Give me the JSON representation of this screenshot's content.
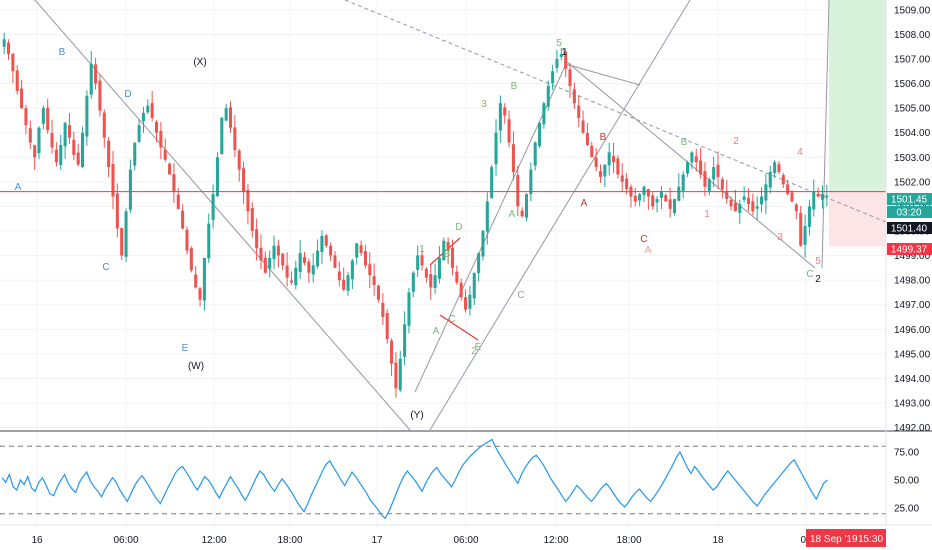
{
  "chart_data": {
    "type": "candlestick",
    "price_axis": {
      "ticks": [
        "1509.00",
        "1508.00",
        "1507.00",
        "1506.00",
        "1505.00",
        "1504.00",
        "1503.00",
        "1502.00",
        "1501.00",
        "1500.00",
        "1499.00",
        "1498.00",
        "1497.00",
        "1496.00",
        "1495.00",
        "1494.00",
        "1493.00",
        "1492.00"
      ],
      "ylim": [
        1491.9,
        1509.4
      ],
      "tags": {
        "last_price": "1501.45",
        "countdown": "03:20",
        "price_1": "1501.40",
        "price_2": "1499.37"
      }
    },
    "time_axis": {
      "labels": [
        "16",
        "06:00",
        "12:00",
        "18:00",
        "17",
        "06:00",
        "12:00",
        "18:00",
        "18",
        "06"
      ],
      "cursor_label": "18 Sep '19",
      "cursor_time": "15:30"
    },
    "rsi": {
      "ticks": [
        "75.00",
        "50.00",
        "25.00"
      ],
      "upper": 80,
      "lower": 20,
      "range": [
        10,
        90
      ],
      "values": [
        52,
        48,
        55,
        44,
        41,
        50,
        46,
        53,
        43,
        40,
        48,
        52,
        45,
        38,
        36,
        44,
        50,
        55,
        47,
        42,
        39,
        48,
        53,
        57,
        49,
        44,
        40,
        35,
        42,
        47,
        52,
        48,
        41,
        36,
        31,
        38,
        45,
        50,
        54,
        49,
        44,
        38,
        33,
        29,
        36,
        43,
        49,
        56,
        60,
        62,
        57,
        52,
        46,
        41,
        47,
        53,
        50,
        45,
        39,
        34,
        41,
        47,
        53,
        48,
        43,
        37,
        32,
        38,
        45,
        52,
        58,
        55,
        49,
        44,
        40,
        46,
        51,
        47,
        42,
        37,
        31,
        26,
        22,
        29,
        37,
        44,
        51,
        58,
        64,
        67,
        61,
        56,
        50,
        45,
        51,
        57,
        53,
        48,
        43,
        38,
        32,
        28,
        24,
        19,
        16,
        22,
        30,
        38,
        46,
        53,
        58,
        54,
        50,
        45,
        40,
        47,
        53,
        58,
        61,
        56,
        52,
        48,
        44,
        50,
        57,
        63,
        67,
        71,
        74,
        77,
        80,
        82,
        84,
        86,
        79,
        73,
        68,
        62,
        57,
        52,
        47,
        55,
        61,
        66,
        70,
        72,
        68,
        63,
        57,
        51,
        46,
        41,
        36,
        31,
        35,
        40,
        45,
        42,
        38,
        34,
        31,
        35,
        40,
        44,
        47,
        43,
        38,
        33,
        29,
        26,
        30,
        35,
        39,
        42,
        38,
        34,
        31,
        35,
        40,
        45,
        51,
        57,
        63,
        70,
        75,
        68,
        61,
        56,
        62,
        58,
        53,
        49,
        45,
        41,
        44,
        49,
        54,
        58,
        54,
        50,
        46,
        42,
        38,
        34,
        30,
        27,
        32,
        37,
        41,
        45,
        49,
        53,
        57,
        61,
        65,
        68,
        62,
        56,
        50,
        44,
        38,
        33,
        40,
        47,
        50
      ]
    },
    "price_levels": [
      {
        "value": 1501.6,
        "color": "#f23645"
      }
    ],
    "series": [
      {
        "name": "",
        "color_up": "#26a69a",
        "color_down": "#ef5350",
        "ohlc_path": [
          1507.8,
          1507.2,
          1506.5,
          1505.7,
          1505.0,
          1504.3,
          1503.6,
          1503.0,
          1504.2,
          1505.0,
          1504.1,
          1503.4,
          1502.8,
          1503.5,
          1504.4,
          1503.8,
          1503.1,
          1502.7,
          1504.0,
          1505.5,
          1506.8,
          1506.0,
          1504.9,
          1503.8,
          1502.6,
          1501.4,
          1500.1,
          1499.0,
          1500.8,
          1502.5,
          1503.6,
          1504.3,
          1504.8,
          1505.1,
          1504.6,
          1504.0,
          1503.4,
          1502.9,
          1502.3,
          1501.6,
          1500.9,
          1500.1,
          1499.2,
          1498.4,
          1497.7,
          1497.2,
          1498.9,
          1500.3,
          1501.5,
          1503.0,
          1504.6,
          1505.0,
          1504.2,
          1503.3,
          1502.5,
          1501.6,
          1500.8,
          1500.0,
          1499.3,
          1498.8,
          1498.3,
          1498.9,
          1499.4,
          1499.0,
          1498.6,
          1498.1,
          1497.9,
          1498.5,
          1499.1,
          1498.7,
          1498.3,
          1498.6,
          1499.2,
          1499.8,
          1499.4,
          1499.0,
          1498.5,
          1498.0,
          1497.6,
          1498.2,
          1498.8,
          1499.5,
          1499.1,
          1498.6,
          1498.2,
          1497.8,
          1497.2,
          1496.5,
          1495.6,
          1494.6,
          1493.6,
          1494.8,
          1496.2,
          1497.5,
          1498.3,
          1499.0,
          1498.6,
          1498.1,
          1497.7,
          1498.2,
          1498.9,
          1499.6,
          1499.2,
          1498.5,
          1497.9,
          1497.3,
          1496.8,
          1497.4,
          1498.3,
          1499.1,
          1500.0,
          1501.2,
          1502.6,
          1504.0,
          1505.2,
          1504.7,
          1503.6,
          1502.4,
          1501.0,
          1500.6,
          1501.5,
          1502.5,
          1503.6,
          1504.4,
          1505.2,
          1505.9,
          1506.5,
          1507.0,
          1507.2,
          1506.6,
          1505.9,
          1505.2,
          1504.6,
          1504.0,
          1503.5,
          1503.0,
          1502.6,
          1502.2,
          1502.7,
          1503.2,
          1502.8,
          1502.3,
          1502.0,
          1501.7,
          1501.4,
          1501.2,
          1501.5,
          1501.8,
          1501.4,
          1501.0,
          1501.3,
          1501.6,
          1501.2,
          1500.9,
          1501.3,
          1501.8,
          1502.3,
          1502.8,
          1503.2,
          1502.8,
          1502.3,
          1501.8,
          1502.1,
          1502.6,
          1502.2,
          1501.7,
          1501.3,
          1501.0,
          1500.8,
          1501.1,
          1501.4,
          1501.1,
          1500.8,
          1501.0,
          1501.4,
          1501.9,
          1502.4,
          1502.8,
          1502.4,
          1501.9,
          1501.5,
          1501.2,
          1500.8,
          1499.4,
          1500.2,
          1501.0,
          1501.6,
          1501.4,
          1501.5,
          1501.45
        ]
      }
    ]
  },
  "annotations": {
    "wave_labels": [
      {
        "text": "B",
        "color": "#4a90d9",
        "role": "blue-b-start"
      },
      {
        "text": "A",
        "color": "#4a90d9",
        "role": "blue-a"
      },
      {
        "text": "C",
        "color": "#4a90d9",
        "role": "blue-c"
      },
      {
        "text": "D",
        "color": "#4a90d9",
        "role": "blue-d"
      },
      {
        "text": "E",
        "color": "#4a90d9",
        "role": "blue-e"
      },
      {
        "text": "(X)",
        "color": "#131722",
        "role": "wave-x"
      },
      {
        "text": "(W)",
        "color": "#131722",
        "role": "wave-w"
      },
      {
        "text": "(Y)",
        "color": "#131722",
        "role": "wave-y"
      },
      {
        "text": "1",
        "color": "#7cb87c",
        "role": "green-1"
      },
      {
        "text": "A",
        "color": "#7cb87c",
        "role": "green-a"
      },
      {
        "text": "B",
        "color": "#7cb87c",
        "role": "green-b"
      },
      {
        "text": "C",
        "color": "#7cb87c",
        "role": "green-c"
      },
      {
        "text": "D",
        "color": "#7cb87c",
        "role": "green-d"
      },
      {
        "text": "E",
        "color": "#7cb87c",
        "role": "green-e"
      },
      {
        "text": "2",
        "color": "#7cb87c",
        "role": "green-2"
      },
      {
        "text": "3",
        "color": "#a5a55a",
        "role": "wave-3"
      },
      {
        "text": "B",
        "color": "#7cb87c",
        "role": "green-b-upper"
      },
      {
        "text": "A",
        "color": "#7cb87c",
        "role": "green-a-mid"
      },
      {
        "text": "C",
        "color": "#7cb87c",
        "role": "green-c-mid"
      },
      {
        "text": "5",
        "color": "#7cb87c",
        "role": "green-5"
      },
      {
        "text": "1",
        "color": "#131722",
        "role": "wave-1"
      },
      {
        "text": "B",
        "color": "#c0392b",
        "role": "red-b"
      },
      {
        "text": "A",
        "color": "#c0392b",
        "role": "red-a"
      },
      {
        "text": "C",
        "color": "#c0392b",
        "role": "red-c"
      },
      {
        "text": "A",
        "color": "#e8a0a0",
        "role": "pink-a"
      },
      {
        "text": "B",
        "color": "#7cb87c",
        "role": "green-b-right"
      },
      {
        "text": "1",
        "color": "#e88080",
        "role": "pink-1"
      },
      {
        "text": "2",
        "color": "#e88080",
        "role": "pink-2"
      },
      {
        "text": "3",
        "color": "#e88080",
        "role": "pink-3"
      },
      {
        "text": "4",
        "color": "#e88080",
        "role": "pink-4"
      },
      {
        "text": "5",
        "color": "#e88080",
        "role": "pink-5"
      },
      {
        "text": "C",
        "color": "#7cb87c",
        "role": "green-c-right"
      },
      {
        "text": "2",
        "color": "#131722",
        "role": "wave-2"
      }
    ]
  },
  "colors": {
    "up": "#26a69a",
    "down": "#ef5350",
    "rsi_line": "#2196f3",
    "price_line": "#f23645",
    "trend_line": "#9598a1",
    "tp_zone": "#d9f2dc",
    "sl_zone": "#fde4e6",
    "tag_green": "#26a69a",
    "tag_dark": "#131722",
    "tag_red": "#f23645"
  }
}
